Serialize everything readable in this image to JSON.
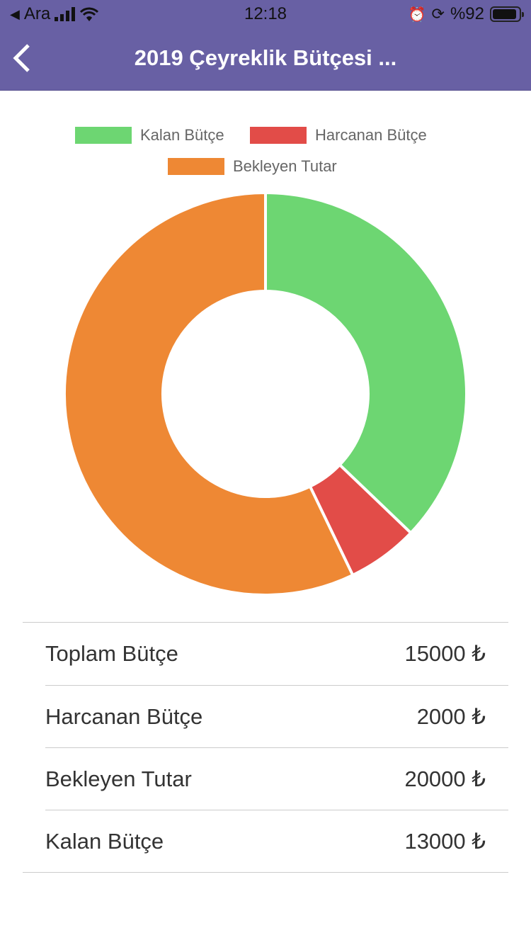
{
  "status_bar": {
    "back_app": "Ara",
    "time": "12:18",
    "battery": "%92",
    "battery_level": 0.92
  },
  "header": {
    "title": "2019 Çeyreklik Bütçesi ...",
    "back_icon": "chevron-left-icon"
  },
  "chart_data": {
    "type": "pie",
    "donut": true,
    "legend_position": "top",
    "labels": [
      "Kalan Bütçe",
      "Harcanan Bütçe",
      "Bekleyen Tutar"
    ],
    "values": [
      13000,
      2000,
      20000
    ],
    "colors": [
      "#6dd672",
      "#e24c48",
      "#ee8834"
    ]
  },
  "summary": {
    "rows": [
      {
        "label": "Toplam Bütçe",
        "value": "15000 ₺"
      },
      {
        "label": "Harcanan Bütçe",
        "value": "2000 ₺"
      },
      {
        "label": "Bekleyen Tutar",
        "value": "20000 ₺"
      },
      {
        "label": "Kalan Bütçe",
        "value": "13000 ₺"
      }
    ]
  }
}
